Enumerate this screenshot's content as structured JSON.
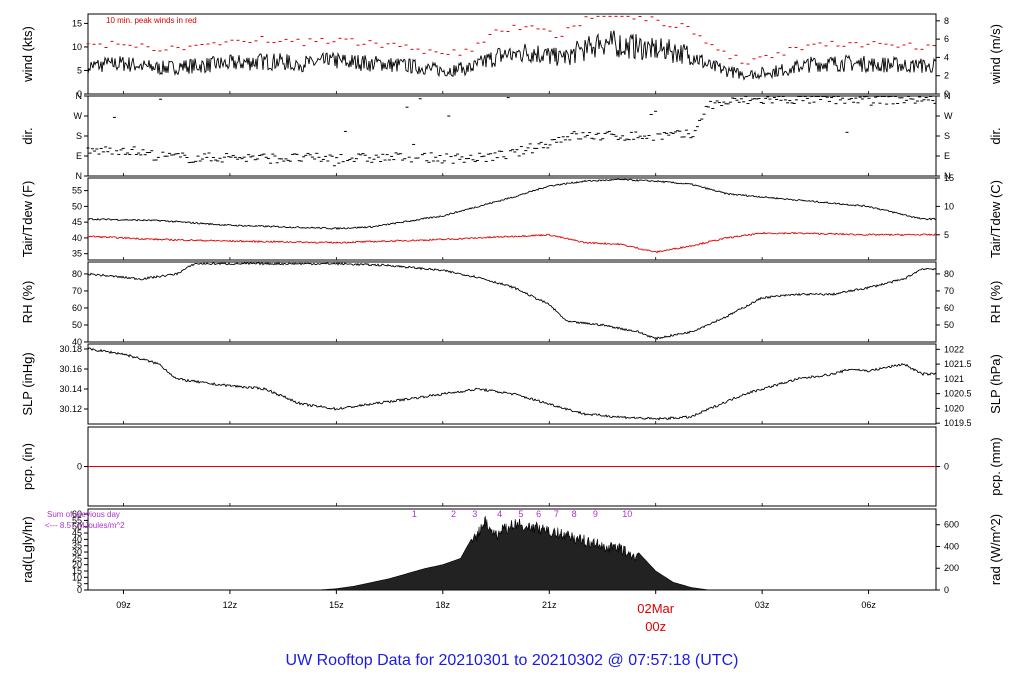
{
  "title": "UW Rooftop Data for 20210301  to  20210302 @ 07:57:18  (UTC)",
  "colors": {
    "title": "#1a1ae6",
    "peak": "#e00000",
    "dew": "#e00000",
    "purple": "#b030d0",
    "date": "#e00000"
  },
  "chart_data": [
    {
      "type": "line",
      "panel": "wind",
      "ylabel_left": "wind (kts)",
      "ylabel_right": "wind (m/s)",
      "yticks_left": [
        "0",
        "5",
        "10",
        "15"
      ],
      "yticks_right": [
        "0",
        "2",
        "4",
        "6",
        "8"
      ],
      "ylim": [
        0,
        17
      ],
      "annotation": "10 min. peak winds in red",
      "series": [
        {
          "x": [
            8,
            9,
            10,
            11,
            12,
            13,
            14,
            15,
            16,
            17,
            18,
            18.8,
            19.5,
            20.5,
            21.3,
            22.5,
            23.5,
            24.5,
            25,
            25.5,
            26.5,
            27.5,
            28.5,
            29.5,
            31.5
          ],
          "y": [
            6,
            6.5,
            5.5,
            6,
            6.5,
            7,
            6.5,
            7,
            6.5,
            6,
            5,
            5.5,
            8,
            9,
            7.5,
            11,
            10,
            9,
            8.5,
            6,
            4,
            5,
            6.5,
            6.5,
            6
          ]
        }
      ]
    },
    {
      "type": "scatter",
      "panel": "dir",
      "ylabel_left": "dir.",
      "ylabel_right": "dir.",
      "yticks_left": [
        "N",
        "E",
        "S",
        "W",
        "N"
      ],
      "yticks_right": [
        "N",
        "E",
        "S",
        "W",
        "N"
      ],
      "ylim": [
        0,
        360
      ],
      "series": [
        {
          "x": [
            8,
            9,
            10,
            11,
            12,
            13,
            14,
            15,
            16,
            17,
            18,
            19,
            20,
            21,
            21.5,
            22,
            23,
            24,
            25,
            25.5,
            26.5,
            27.5,
            28.5,
            29.5,
            31.5
          ],
          "y": [
            110,
            120,
            90,
            80,
            85,
            80,
            80,
            80,
            80,
            85,
            80,
            80,
            100,
            150,
            180,
            180,
            180,
            180,
            185,
            320,
            340,
            345,
            345,
            345,
            345
          ]
        }
      ]
    },
    {
      "type": "line",
      "panel": "temperature",
      "ylabel_left": "Tair/Tdew (F)",
      "ylabel_right": "Tair/Tdew (C)",
      "yticks_left": [
        "35",
        "40",
        "45",
        "50",
        "55"
      ],
      "yticks_right": [
        "5",
        "10",
        "15"
      ],
      "ylim": [
        33,
        59
      ],
      "series": [
        {
          "x": [
            8,
            10,
            12,
            15,
            16,
            18,
            19,
            20,
            21,
            22,
            23,
            24,
            25,
            26,
            28,
            30,
            31.5
          ],
          "y": [
            46,
            45.5,
            44,
            43,
            43.5,
            47,
            50,
            53,
            56.5,
            58,
            58.5,
            58,
            57,
            54,
            52,
            50,
            46
          ]
        },
        {
          "x": [
            8,
            10,
            12,
            15,
            18,
            21,
            22,
            23,
            24,
            25,
            26,
            27,
            28,
            30,
            31.5
          ],
          "y": [
            40.5,
            39.5,
            39,
            38.5,
            39.5,
            41,
            38.5,
            38,
            35.5,
            37.5,
            40,
            41.5,
            41.5,
            41,
            41
          ]
        }
      ]
    },
    {
      "type": "line",
      "panel": "rh",
      "ylabel_left": "RH (%)",
      "ylabel_right": "RH (%)",
      "yticks_left": [
        "40",
        "50",
        "60",
        "70",
        "80"
      ],
      "yticks_right": [
        "50",
        "60",
        "70",
        "80"
      ],
      "ylim": [
        40,
        87
      ],
      "series": [
        {
          "x": [
            8,
            9.5,
            10.5,
            11,
            13,
            15,
            16.5,
            18,
            19,
            20,
            21,
            21.5,
            22.5,
            23.5,
            24,
            25,
            26,
            27,
            28,
            29,
            30,
            31,
            31.5
          ],
          "y": [
            80,
            77,
            80,
            86,
            86,
            86,
            85,
            82,
            78,
            72,
            62,
            52,
            50,
            46,
            42,
            46,
            55,
            66,
            68,
            68,
            72,
            77,
            83
          ]
        }
      ]
    },
    {
      "type": "line",
      "panel": "slp",
      "ylabel_left": "SLP (inHg)",
      "ylabel_right": "SLP (hPa)",
      "yticks_left": [
        "30.12",
        "30.14",
        "30.16",
        "30.18"
      ],
      "yticks_right": [
        "1019.5",
        "1020",
        "1020.5",
        "1021",
        "1021.5",
        "1022"
      ],
      "ylim": [
        30.105,
        30.185
      ],
      "series": [
        {
          "x": [
            8,
            9,
            10,
            10.5,
            11.5,
            13,
            14,
            15,
            16,
            17,
            18,
            19,
            20,
            21,
            22,
            23,
            24,
            25,
            25.5,
            26.5,
            28,
            29,
            29.5,
            30,
            31,
            31.5
          ],
          "y": [
            30.18,
            30.175,
            30.165,
            30.15,
            30.145,
            30.14,
            30.125,
            30.12,
            30.125,
            30.13,
            30.135,
            30.14,
            30.135,
            30.125,
            30.115,
            30.112,
            30.11,
            30.112,
            30.12,
            30.135,
            30.15,
            30.155,
            30.16,
            30.158,
            30.165,
            30.155
          ]
        }
      ]
    },
    {
      "type": "line",
      "panel": "precipitation",
      "ylabel_left": "pcp. (in)",
      "ylabel_right": "pcp. (mm)",
      "yticks_left": [
        "0"
      ],
      "yticks_right": [
        "0"
      ],
      "series": [
        {
          "x": [
            8,
            31.5
          ],
          "y": [
            0,
            0
          ]
        }
      ]
    },
    {
      "type": "area",
      "panel": "radiation",
      "ylabel_left": "rad(Lgly/hr)",
      "ylabel_right": "rad (W/m^2)",
      "yticks_left": [
        "0",
        "5",
        "10",
        "15",
        "20",
        "25",
        "30",
        "35",
        "40",
        "45",
        "50",
        "55",
        "60"
      ],
      "yticks_right": [
        "0",
        "200",
        "400",
        "600"
      ],
      "ylim": [
        0,
        64
      ],
      "annotation_lines": [
        "Sum of previous day",
        "<--- 8.57 MJoules/m^2"
      ],
      "hour_markers": [
        "1",
        "2",
        "3",
        "4",
        "5",
        "6",
        "7",
        "8",
        "9",
        "10"
      ],
      "hour_marker_x": [
        17.2,
        18.3,
        18.9,
        19.6,
        20.2,
        20.7,
        21.2,
        21.7,
        22.3,
        23.2
      ],
      "series": [
        {
          "x": [
            14.5,
            15,
            15.5,
            16,
            16.5,
            17,
            17.5,
            18,
            18.5,
            19,
            19.2,
            19.5,
            20,
            20.5,
            21,
            21.5,
            22,
            22.5,
            23,
            23.5,
            24,
            24.5,
            25,
            25.5
          ],
          "y": [
            0,
            1,
            3,
            6,
            9,
            13,
            17,
            20,
            25,
            50,
            60,
            48,
            58,
            55,
            52,
            48,
            44,
            40,
            38,
            30,
            15,
            6,
            2,
            0
          ]
        }
      ]
    }
  ],
  "x_axis": {
    "ticks": [
      "09z",
      "12z",
      "15z",
      "18z",
      "21z",
      "02Mar",
      "03z",
      "06z"
    ],
    "tick_hours": [
      9,
      12,
      15,
      18,
      21,
      24,
      27,
      30
    ],
    "day_label": "02Mar",
    "day_hour": "00z",
    "xlim": [
      8,
      31.9
    ]
  }
}
